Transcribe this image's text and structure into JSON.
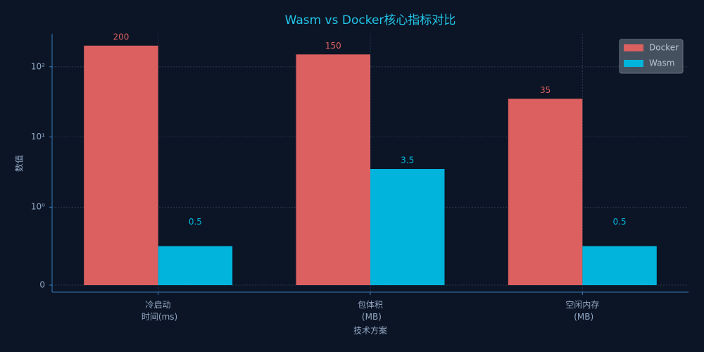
{
  "chart_data": {
    "type": "bar",
    "title": "Wasm vs Docker核心指标对比",
    "x_label": "技术方案",
    "y_label": "数值",
    "categories": [
      "冷启动\n时间(ms)",
      "包体积\n(MB)",
      "空闲内存\n(MB)"
    ],
    "series": [
      {
        "name": "Docker",
        "color": "#dc6060",
        "values": [
          200,
          150,
          35
        ]
      },
      {
        "name": "Wasm",
        "color": "#00b4dc",
        "values": [
          0.5,
          3.5,
          0.5
        ]
      }
    ],
    "yscale": "symlog",
    "linthresh": 1,
    "linscale": 1,
    "ylim": [
      -0.09,
      295
    ],
    "yticks": [
      0,
      {
        "value": 1,
        "label": "10⁰"
      },
      {
        "value": 10,
        "label": "10¹"
      },
      {
        "value": 100,
        "label": "10²"
      }
    ],
    "grid": true,
    "legend": "upper right"
  }
}
